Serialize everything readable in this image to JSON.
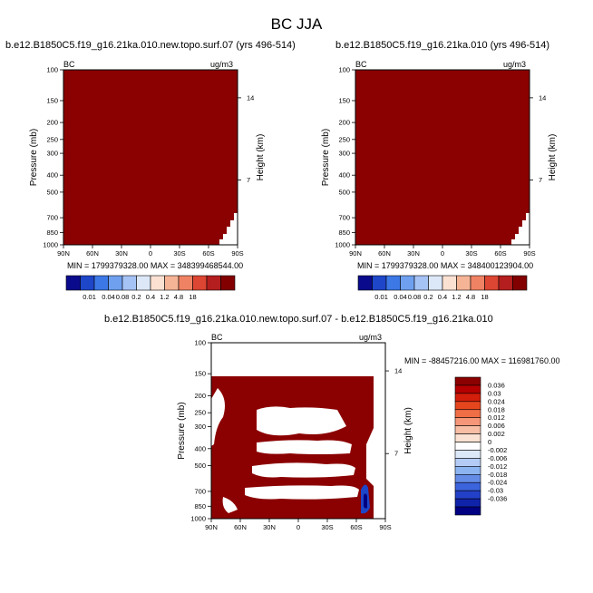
{
  "title": "BC JJA",
  "palette": {
    "dark_red": "#8b0000",
    "lb_colors": [
      "#0a0a8c",
      "#1e46c8",
      "#3c78e6",
      "#6fa0f0",
      "#a5c3f5",
      "#dce8f8",
      "#fbe1d2",
      "#f6b496",
      "#f08264",
      "#dc4632",
      "#b41e1e",
      "#820000"
    ],
    "diff_colors": [
      "#8b0000",
      "#b40000",
      "#d21e0a",
      "#e6461e",
      "#f06e46",
      "#f59678",
      "#f8bea5",
      "#fbe1d2",
      "#ffffff",
      "#dce8f8",
      "#b4ccf5",
      "#8cb4f0",
      "#648ce6",
      "#3c64dc",
      "#2341c8",
      "#0f23aa",
      "#000082"
    ]
  },
  "panels": [
    {
      "title": "b.e12.B1850C5.f19_g16.21ka.010.new.topo.surf.07 (yrs 496-514)",
      "var_label": "BC",
      "units": "ug/m3",
      "ylabel": "Pressure (mb)",
      "ylabel_right": "Height (km)",
      "min_max": "MIN = 1799379328.00    MAX = 348399468544.00"
    },
    {
      "title": "b.e12.B1850C5.f19_g16.21ka.010 (yrs 496-514)",
      "var_label": "BC",
      "units": "ug/m3",
      "ylabel": "Pressure (mb)",
      "ylabel_right": "Height (km)",
      "min_max": "MIN = 1799379328.00    MAX = 348400123904.00"
    },
    {
      "title": "b.e12.B1850C5.f19_g16.21ka.010.new.topo.surf.07 - b.e12.B1850C5.f19_g16.21ka.010",
      "var_label": "BC",
      "units": "ug/m3",
      "ylabel": "Pressure (mb)",
      "ylabel_right": "Height (km)",
      "min_max": "MIN = -88457216.00   MAX = 116981760.00"
    }
  ],
  "chart_data": [
    {
      "type": "heatmap",
      "title": "b.e12.B1850C5.f19_g16.21ka.010.new.topo.surf.07 (yrs 496-514)",
      "xlabel": "",
      "ylabel": "Pressure (mb)",
      "x_ticks": [
        "90N",
        "60N",
        "30N",
        "0",
        "30S",
        "60S",
        "90S"
      ],
      "y_ticks": [
        "100",
        "150",
        "200",
        "250",
        "300",
        "400",
        "500",
        "700",
        "850",
        "1000"
      ],
      "y_right_ticks": [
        "14",
        "7"
      ],
      "xlim": [
        90,
        -90
      ],
      "ylim": [
        1000,
        100
      ],
      "y_scale": "log",
      "fill": "all values above highest contour level (18 ug/m3)"
    },
    {
      "type": "heatmap",
      "title": "b.e12.B1850C5.f19_g16.21ka.010 (yrs 496-514)",
      "xlabel": "",
      "ylabel": "Pressure (mb)",
      "x_ticks": [
        "90N",
        "60N",
        "30N",
        "0",
        "30S",
        "60S",
        "90S"
      ],
      "y_ticks": [
        "100",
        "150",
        "200",
        "250",
        "300",
        "400",
        "500",
        "700",
        "850",
        "1000"
      ],
      "y_right_ticks": [
        "14",
        "7"
      ],
      "xlim": [
        90,
        -90
      ],
      "ylim": [
        1000,
        100
      ],
      "y_scale": "log",
      "fill": "all values above highest contour level (18 ug/m3)"
    },
    {
      "type": "heatmap",
      "title": "b.e12.B1850C5.f19_g16.21ka.010.new.topo.surf.07 - b.e12.B1850C5.f19_g16.21ka.010",
      "xlabel": "",
      "ylabel": "Pressure (mb)",
      "x_ticks": [
        "90N",
        "60N",
        "30N",
        "0",
        "30S",
        "60S",
        "90S"
      ],
      "y_ticks": [
        "100",
        "150",
        "200",
        "250",
        "300",
        "400",
        "500",
        "700",
        "850",
        "1000"
      ],
      "y_right_ticks": [
        "14",
        "7"
      ],
      "xlim": [
        90,
        -90
      ],
      "ylim": [
        1000,
        100
      ],
      "y_scale": "log",
      "fill": "dark red above 0.036 with white bands near 250, 400, 500-600 and 700-850 mb; small blue patch near 60S-75S at 700-900 mb"
    }
  ],
  "colorbar": {
    "labels": [
      "0.01",
      "0.04",
      "0.08",
      "0.2",
      "0.4",
      "1.2",
      "4.8",
      "18"
    ]
  },
  "diff_colorbar": {
    "labels": [
      "0.036",
      "0.03",
      "0.024",
      "0.018",
      "0.012",
      "0.006",
      "0.002",
      "0",
      "-0.002",
      "-0.006",
      "-0.012",
      "-0.018",
      "-0.024",
      "-0.03",
      "-0.036"
    ]
  }
}
